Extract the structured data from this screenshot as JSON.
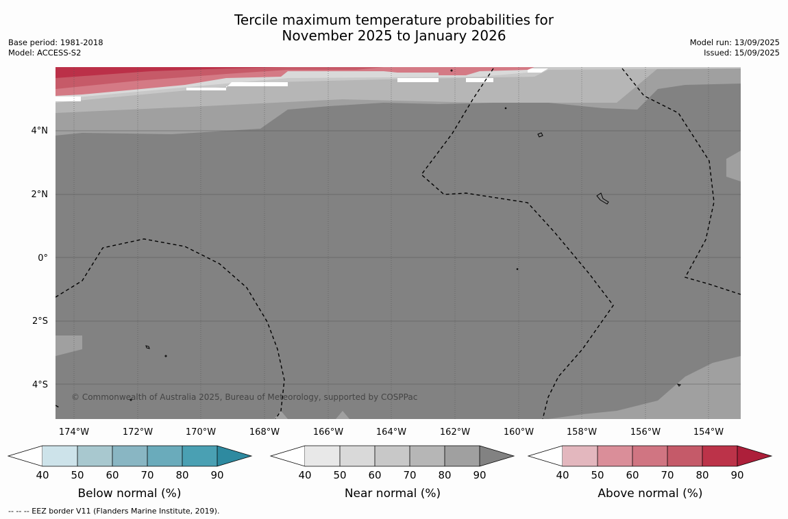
{
  "title": {
    "line1": "Tercile maximum temperature probabilities for",
    "line2": "November 2025 to January 2026"
  },
  "meta_left": {
    "base_period": "Base period: 1981-2018",
    "model": "Model: ACCESS-S2"
  },
  "meta_right": {
    "model_run": "Model run: 13/09/2025",
    "issued": "Issued: 15/09/2025"
  },
  "map": {
    "lon_labels": [
      "174°W",
      "172°W",
      "170°W",
      "168°W",
      "166°W",
      "164°W",
      "162°W",
      "160°W",
      "158°W",
      "156°W",
      "154°W"
    ],
    "lat_labels": [
      "4°N",
      "2°N",
      "0°",
      "2°S",
      "4°S"
    ],
    "copyright": "© Commonwealth of Australia 2025, Bureau of Meteorology, supported by COSPPac",
    "colors": {
      "near_80": "#a0a0a0",
      "near_90": "#828282",
      "near_70": "#b6b6b6",
      "near_60": "#c8c8c8",
      "near_50": "#d9d9d9",
      "above_60": "#d47a85",
      "above_70": "#c65a68",
      "above_80": "#bb3048"
    }
  },
  "colorbars": [
    {
      "label": "Below normal (%)",
      "ticks": [
        "40",
        "50",
        "60",
        "70",
        "80",
        "90"
      ],
      "colors": [
        "#cde3ea",
        "#a8c8cf",
        "#89b6c3",
        "#6aabbb",
        "#4aa0b3",
        "#2e8aa0"
      ]
    },
    {
      "label": "Near normal (%)",
      "ticks": [
        "40",
        "50",
        "60",
        "70",
        "80",
        "90"
      ],
      "colors": [
        "#e8e8e8",
        "#d9d9d9",
        "#c8c8c8",
        "#b6b6b6",
        "#a0a0a0",
        "#828282"
      ]
    },
    {
      "label": "Above normal (%)",
      "ticks": [
        "40",
        "50",
        "60",
        "70",
        "80",
        "90"
      ],
      "colors": [
        "#e3b7be",
        "#da8e99",
        "#d07582",
        "#c55a69",
        "#bc3349",
        "#ad1f3a"
      ]
    }
  ],
  "footer": "--  --  -- EEZ border V11 (Flanders Marine Institute, 2019)."
}
